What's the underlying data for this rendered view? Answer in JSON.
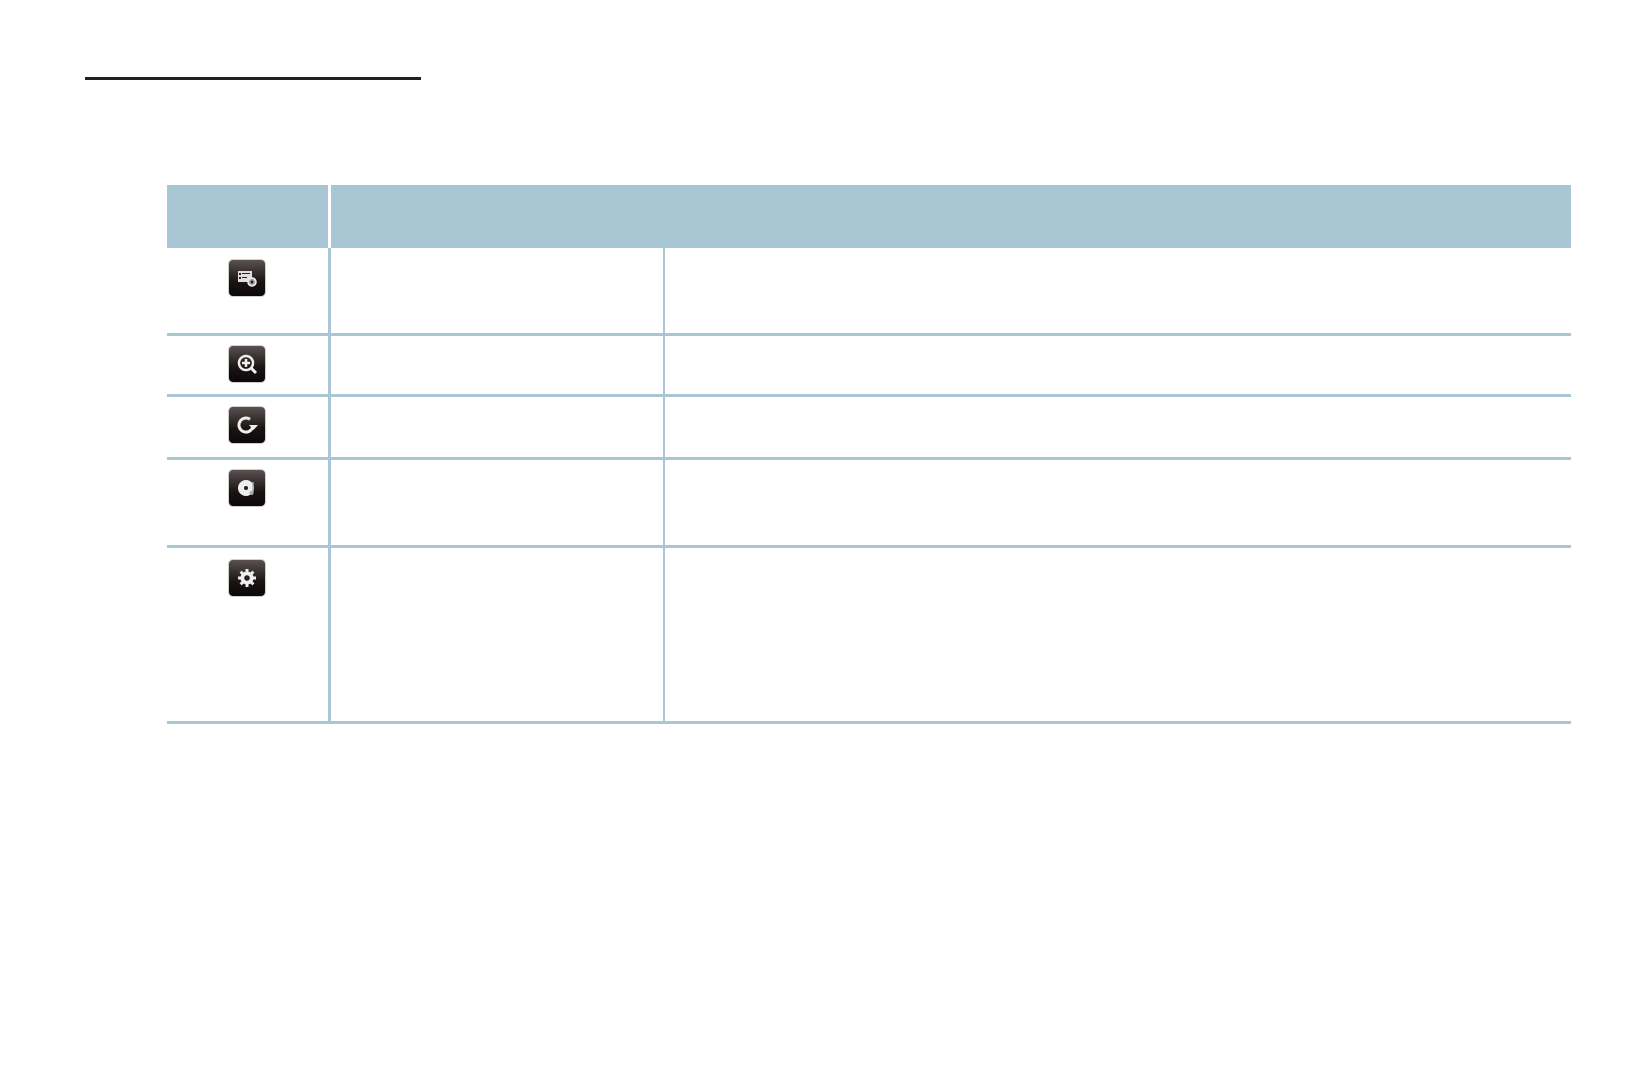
{
  "colors": {
    "table_header": "#a9c6d4",
    "grid_line": "#a9c6d4",
    "title_rule": "#231f20",
    "icon_bg": "#1a1413"
  },
  "rows": [
    {
      "icon": "screen-settings-icon"
    },
    {
      "icon": "zoom-in-icon"
    },
    {
      "icon": "rotate-icon"
    },
    {
      "icon": "disc-music-icon"
    },
    {
      "icon": "gear-icon"
    }
  ]
}
